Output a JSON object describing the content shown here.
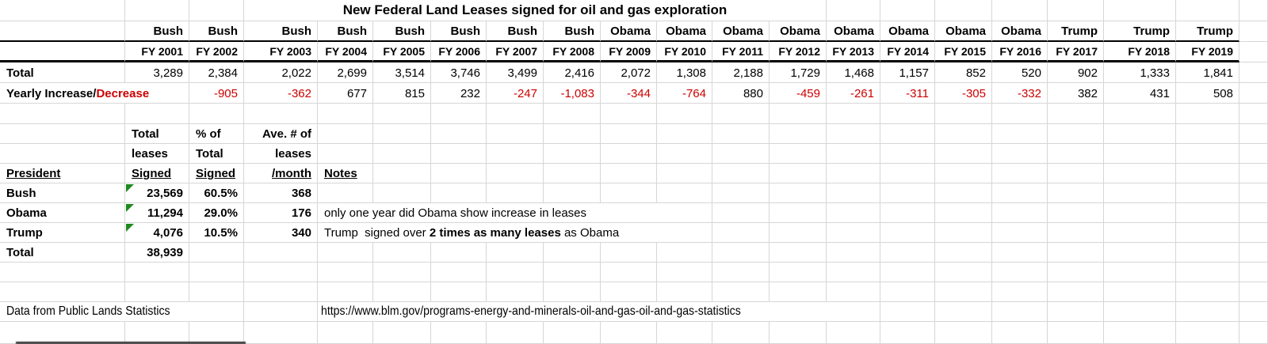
{
  "title": "New Federal Land Leases signed for oil and gas exploration",
  "colors": {
    "negative_value": "#cc0000",
    "decrease_label": "#cc0000",
    "flag_triangle": "#1e8a1e",
    "gridline": "#d6d6d6",
    "table_border": "#000000"
  },
  "lease_table": {
    "row_labels": {
      "total": "Total",
      "yearly_black": "Yearly Increase/",
      "yearly_red": "Decrease"
    },
    "columns": [
      {
        "president": "Bush",
        "fy": "FY 2001",
        "total": "3,289",
        "change": ""
      },
      {
        "president": "Bush",
        "fy": "FY 2002",
        "total": "2,384",
        "change": "-905"
      },
      {
        "president": "Bush",
        "fy": "FY 2003",
        "total": "2,022",
        "change": "-362"
      },
      {
        "president": "Bush",
        "fy": "FY 2004",
        "total": "2,699",
        "change": "677"
      },
      {
        "president": "Bush",
        "fy": "FY 2005",
        "total": "3,514",
        "change": "815"
      },
      {
        "president": "Bush",
        "fy": "FY 2006",
        "total": "3,746",
        "change": "232"
      },
      {
        "president": "Bush",
        "fy": "FY 2007",
        "total": "3,499",
        "change": "-247"
      },
      {
        "president": "Bush",
        "fy": "FY 2008",
        "total": "2,416",
        "change": "-1,083"
      },
      {
        "president": "Obama",
        "fy": "FY 2009",
        "total": "2,072",
        "change": "-344"
      },
      {
        "president": "Obama",
        "fy": "FY 2010",
        "total": "1,308",
        "change": "-764"
      },
      {
        "president": "Obama",
        "fy": "FY 2011",
        "total": "2,188",
        "change": "880"
      },
      {
        "president": "Obama",
        "fy": "FY 2012",
        "total": "1,729",
        "change": "-459"
      },
      {
        "president": "Obama",
        "fy": "FY 2013",
        "total": "1,468",
        "change": "-261"
      },
      {
        "president": "Obama",
        "fy": "FY 2014",
        "total": "1,157",
        "change": "-311"
      },
      {
        "president": "Obama",
        "fy": "FY 2015",
        "total": "852",
        "change": "-305"
      },
      {
        "president": "Obama",
        "fy": "FY 2016",
        "total": "520",
        "change": "-332"
      },
      {
        "president": "Trump",
        "fy": "FY 2017",
        "total": "902",
        "change": "382"
      },
      {
        "president": "Trump",
        "fy": "FY 2018",
        "total": "1,333",
        "change": "431"
      },
      {
        "president": "Trump",
        "fy": "FY 2019",
        "total": "1,841",
        "change": "508"
      }
    ]
  },
  "summary_table": {
    "headers": {
      "president": "President",
      "total_leases": [
        "Total",
        "leases",
        "Signed"
      ],
      "pct_total": [
        "% of",
        "Total",
        "Signed"
      ],
      "avg_month": [
        "Ave. # of",
        "leases",
        "/month"
      ],
      "notes": "Notes"
    },
    "rows": [
      {
        "president": "Bush",
        "total": "23,569",
        "pct": "60.5%",
        "avg": "368",
        "flag": true,
        "note": []
      },
      {
        "president": "Obama",
        "total": "11,294",
        "pct": "29.0%",
        "avg": "176",
        "flag": true,
        "note": [
          {
            "text": "only one year did Obama show increase in leases",
            "bold": false
          }
        ]
      },
      {
        "president": "Trump",
        "total": "4,076",
        "pct": "10.5%",
        "avg": "340",
        "flag": true,
        "note": [
          {
            "text": "Trump  signed over ",
            "bold": false
          },
          {
            "text": "2 times as many leases",
            "bold": true
          },
          {
            "text": " as Obama",
            "bold": false
          }
        ]
      }
    ],
    "total_row": {
      "label": "Total",
      "value": "38,939"
    }
  },
  "footer": {
    "source": "Data from Public Lands Statistics",
    "url": "https://www.blm.gov/programs-energy-and-minerals-oil-and-gas-oil-and-gas-statistics"
  }
}
